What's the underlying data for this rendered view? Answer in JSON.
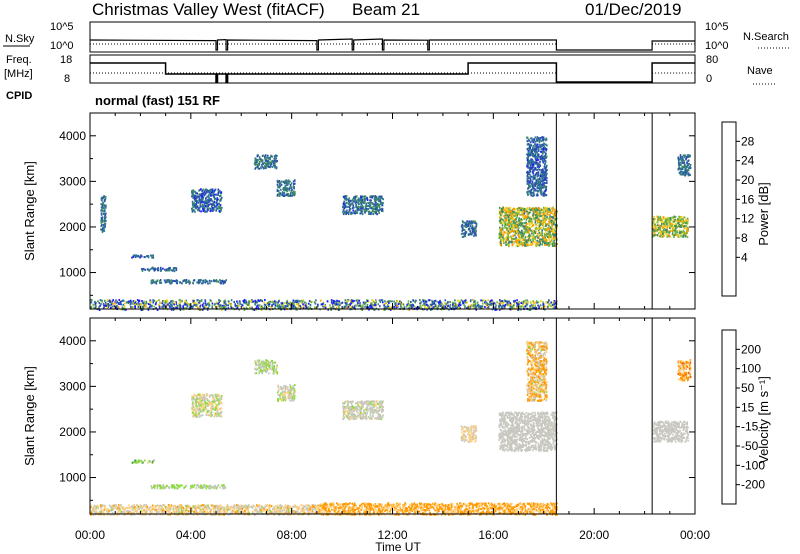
{
  "header": {
    "station": "Christmas Valley West (fitACF)",
    "beam": "Beam 21",
    "date": "01/Dec/2019"
  },
  "mini_panels": {
    "nsky_label": "N.Sky",
    "nsky_ticks": [
      "10^5",
      "10^0"
    ],
    "nsearch_label": "N.Search",
    "nsearch_ticks": [
      "10^5",
      "10^0"
    ],
    "freq_label": "Freq.",
    "freq_unit": "[MHz]",
    "freq_ticks": [
      "18",
      "8"
    ],
    "nave_label": "Nave",
    "nave_ticks": [
      "80",
      "0"
    ],
    "cpid_label": "CPID",
    "program": "normal (fast) 151 RF"
  },
  "colors": {
    "power_scale": [
      "#1a1aff",
      "#2b4fb0",
      "#2f7a8a",
      "#3f8f5a",
      "#78b83a",
      "#f0d020",
      "#ff9a00",
      "#ff5500",
      "#ff0000"
    ],
    "velocity_scale": [
      "#ee1111",
      "#ff5a00",
      "#ff9a00",
      "#ffd080",
      "#c8c8c0",
      "#8adc3a",
      "#3a9a3a",
      "#2a5ab0",
      "#1a2ad0"
    ]
  },
  "chart_data": [
    {
      "type": "heatmap",
      "name": "power",
      "title": "",
      "xlabel": "",
      "ylabel": "Slant Range [km]",
      "xlim": [
        0,
        24
      ],
      "ylim": [
        200,
        4500
      ],
      "xticks": [
        "00:00",
        "04:00",
        "08:00",
        "12:00",
        "16:00",
        "20:00",
        "00:00"
      ],
      "yticks": [
        1000,
        2000,
        3000,
        4000
      ],
      "colorbar_label": "Power [dB]",
      "colorbar_range": [
        0,
        32
      ],
      "colorbar_ticks": [
        "28",
        "24",
        "20",
        "16",
        "12",
        "8",
        "4"
      ],
      "data_gap_hours": [
        [
          18.5,
          22.3
        ]
      ],
      "echo_regions": [
        {
          "t0": 0.0,
          "t1": 18.5,
          "r0": 200,
          "r1": 420,
          "value": 10,
          "spread": 12
        },
        {
          "t0": 0.4,
          "t1": 0.6,
          "r0": 1900,
          "r1": 2700,
          "value": 8,
          "spread": 4
        },
        {
          "t0": 1.6,
          "t1": 2.6,
          "r0": 1340,
          "r1": 1400,
          "value": 7,
          "spread": 4
        },
        {
          "t0": 2.0,
          "t1": 3.4,
          "r0": 1050,
          "r1": 1130,
          "value": 7,
          "spread": 4
        },
        {
          "t0": 2.4,
          "t1": 5.4,
          "r0": 780,
          "r1": 860,
          "value": 8,
          "spread": 4
        },
        {
          "t0": 4.0,
          "t1": 5.2,
          "r0": 2350,
          "r1": 2850,
          "value": 7,
          "spread": 5
        },
        {
          "t0": 6.5,
          "t1": 7.4,
          "r0": 3300,
          "r1": 3600,
          "value": 9,
          "spread": 5
        },
        {
          "t0": 7.4,
          "t1": 8.1,
          "r0": 2700,
          "r1": 3050,
          "value": 9,
          "spread": 4
        },
        {
          "t0": 10.0,
          "t1": 11.6,
          "r0": 2300,
          "r1": 2700,
          "value": 8,
          "spread": 5
        },
        {
          "t0": 14.7,
          "t1": 15.3,
          "r0": 1800,
          "r1": 2150,
          "value": 8,
          "spread": 4
        },
        {
          "t0": 16.2,
          "t1": 18.5,
          "r0": 1600,
          "r1": 2450,
          "value": 17,
          "spread": 8
        },
        {
          "t0": 17.3,
          "t1": 18.1,
          "r0": 2700,
          "r1": 4000,
          "value": 7,
          "spread": 4
        },
        {
          "t0": 22.3,
          "t1": 23.7,
          "r0": 1800,
          "r1": 2250,
          "value": 17,
          "spread": 6
        },
        {
          "t0": 23.3,
          "t1": 23.8,
          "r0": 3150,
          "r1": 3600,
          "value": 8,
          "spread": 4
        }
      ]
    },
    {
      "type": "heatmap",
      "name": "velocity",
      "title": "",
      "xlabel": "Time UT",
      "ylabel": "Slant Range [km]",
      "xlim": [
        0,
        24
      ],
      "ylim": [
        200,
        4500
      ],
      "xticks": [
        "00:00",
        "04:00",
        "08:00",
        "12:00",
        "16:00",
        "20:00",
        "00:00"
      ],
      "yticks": [
        1000,
        2000,
        3000,
        4000
      ],
      "colorbar_label": "Velocity [m s⁻¹]",
      "colorbar_ticks": [
        "200",
        "100",
        "50",
        "15",
        "-15",
        "-50",
        "-100",
        "-200"
      ],
      "data_gap_hours": [
        [
          18.5,
          22.3
        ]
      ],
      "echo_regions": [
        {
          "t0": 0.0,
          "t1": 9.0,
          "r0": 200,
          "r1": 420,
          "value": -20,
          "spread": 40
        },
        {
          "t0": 9.0,
          "t1": 18.5,
          "r0": 200,
          "r1": 460,
          "value": -55,
          "spread": 30
        },
        {
          "t0": 1.6,
          "t1": 2.6,
          "r0": 1340,
          "r1": 1400,
          "value": 40,
          "spread": 60
        },
        {
          "t0": 2.4,
          "t1": 5.4,
          "r0": 780,
          "r1": 860,
          "value": 20,
          "spread": 20
        },
        {
          "t0": 4.0,
          "t1": 5.2,
          "r0": 2350,
          "r1": 2850,
          "value": 0,
          "spread": 40
        },
        {
          "t0": 6.5,
          "t1": 7.4,
          "r0": 3300,
          "r1": 3600,
          "value": 10,
          "spread": 30
        },
        {
          "t0": 7.4,
          "t1": 8.1,
          "r0": 2700,
          "r1": 3050,
          "value": 0,
          "spread": 30
        },
        {
          "t0": 10.0,
          "t1": 11.6,
          "r0": 2300,
          "r1": 2700,
          "value": 0,
          "spread": 20
        },
        {
          "t0": 14.7,
          "t1": 15.3,
          "r0": 1800,
          "r1": 2150,
          "value": -20,
          "spread": 30
        },
        {
          "t0": 16.2,
          "t1": 18.5,
          "r0": 1600,
          "r1": 2450,
          "value": 0,
          "spread": 6
        },
        {
          "t0": 17.3,
          "t1": 18.1,
          "r0": 2700,
          "r1": 4000,
          "value": -40,
          "spread": 60
        },
        {
          "t0": 22.3,
          "t1": 23.7,
          "r0": 1800,
          "r1": 2250,
          "value": 0,
          "spread": 6
        },
        {
          "t0": 23.3,
          "t1": 23.8,
          "r0": 3150,
          "r1": 3600,
          "value": -60,
          "spread": 60
        }
      ]
    }
  ]
}
